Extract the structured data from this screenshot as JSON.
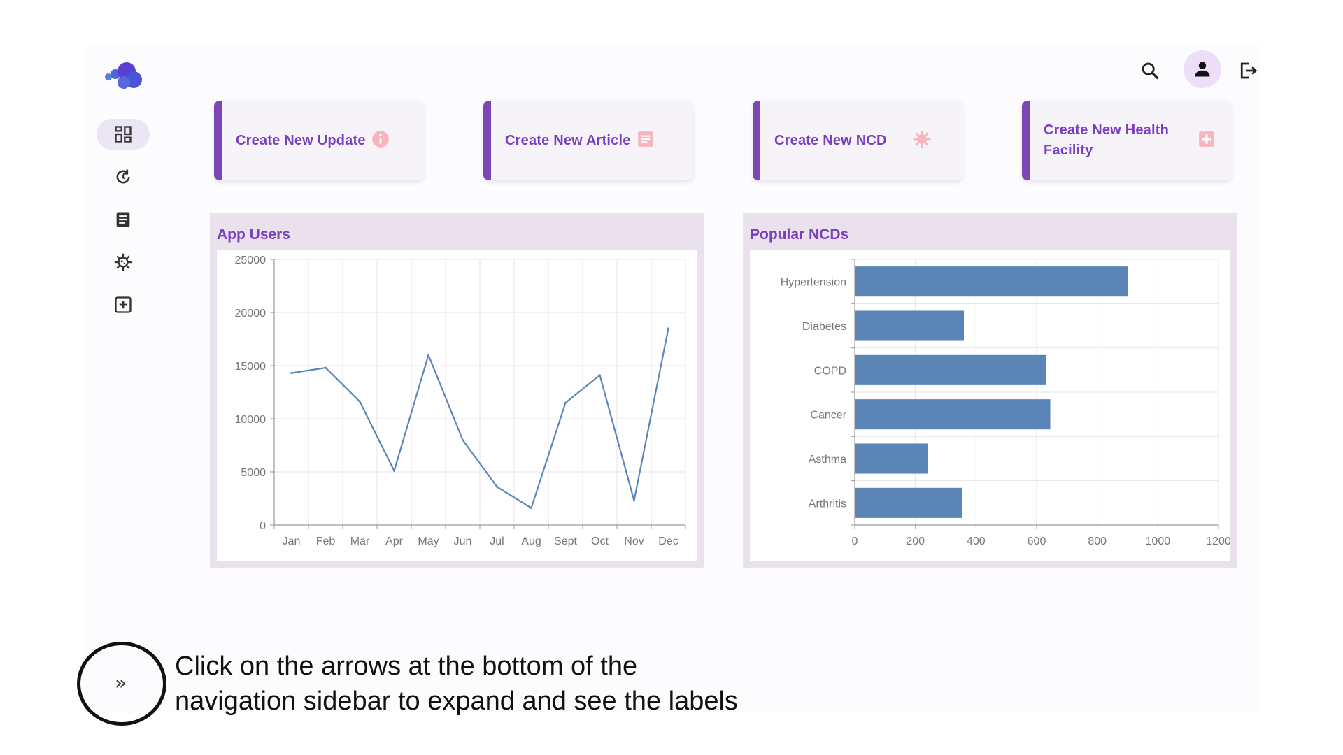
{
  "quick_actions": [
    {
      "label": "Create New Update",
      "icon": "info-icon"
    },
    {
      "label": "Create New Article",
      "icon": "article-icon"
    },
    {
      "label": "Create New NCD",
      "icon": "virus-icon"
    },
    {
      "label": "Create New Health Facility",
      "icon": "plus-square-icon"
    }
  ],
  "sidebar": {
    "items": [
      {
        "name": "dashboard-icon",
        "active": true
      },
      {
        "name": "history-icon",
        "active": false
      },
      {
        "name": "article-icon",
        "active": false
      },
      {
        "name": "virus-icon",
        "active": false
      },
      {
        "name": "plus-square-icon",
        "active": false
      }
    ],
    "expand_label": "»"
  },
  "topbar": {
    "icons": [
      "search-icon",
      "user-icon",
      "logout-icon"
    ]
  },
  "colors": {
    "accent": "#7a3fbe",
    "line": "#5b86b8",
    "bar": "#5b85b6",
    "panel_bg": "#e9e1ec"
  },
  "annotation": {
    "caption_line1": "Click on the arrows at the bottom of the",
    "caption_line2": "navigation sidebar to expand and see the labels"
  },
  "chart_data": [
    {
      "type": "line",
      "title": "App Users",
      "categories": [
        "Jan",
        "Feb",
        "Mar",
        "Apr",
        "May",
        "Jun",
        "Jul",
        "Aug",
        "Sept",
        "Oct",
        "Nov",
        "Dec"
      ],
      "values": [
        14300,
        14800,
        11600,
        5100,
        16000,
        8000,
        3600,
        1600,
        11500,
        14100,
        2300,
        18500
      ],
      "ylim": [
        0,
        25000
      ],
      "yticks": [
        "0",
        "5000",
        "10000",
        "15000",
        "20000",
        "25000"
      ],
      "grid": true
    },
    {
      "type": "bar",
      "orientation": "horizontal",
      "title": "Popular NCDs",
      "categories": [
        "Hypertension",
        "Diabetes",
        "COPD",
        "Cancer",
        "Asthma",
        "Arthritis"
      ],
      "values": [
        900,
        360,
        630,
        645,
        240,
        355
      ],
      "xlim": [
        0,
        1200
      ],
      "xticks": [
        "0",
        "200",
        "400",
        "600",
        "800",
        "1000",
        "1200"
      ],
      "grid": true
    }
  ]
}
